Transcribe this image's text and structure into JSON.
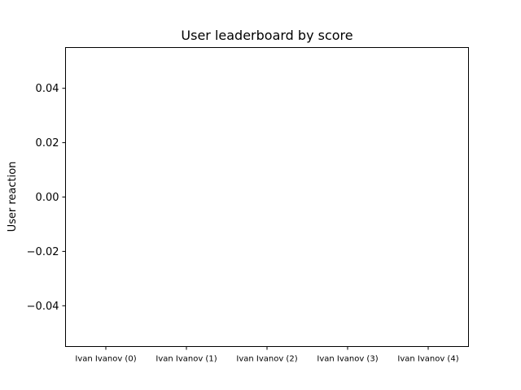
{
  "chart_data": {
    "type": "bar",
    "title": "User leaderboard by score",
    "xlabel": "",
    "ylabel": "User reaction",
    "categories": [
      "Ivan Ivanov (0)",
      "Ivan Ivanov (1)",
      "Ivan Ivanov (2)",
      "Ivan Ivanov (3)",
      "Ivan Ivanov (4)"
    ],
    "values": [
      0,
      0,
      0,
      0,
      0
    ],
    "ylim": [
      -0.055,
      0.055
    ],
    "yticks": [
      -0.04,
      -0.02,
      0.0,
      0.02,
      0.04
    ],
    "ytick_labels": [
      "−0.04",
      "−0.02",
      "0.00",
      "0.02",
      "0.04"
    ],
    "grid": false,
    "legend": "none"
  }
}
